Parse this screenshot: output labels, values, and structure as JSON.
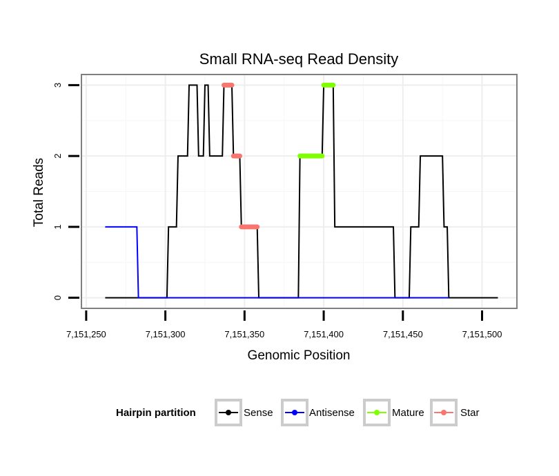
{
  "chart_data": {
    "type": "line",
    "title": "Small RNA-seq Read Density",
    "xlabel": "Genomic Position",
    "ylabel": "Total Reads",
    "xlim": [
      7151247,
      7151522
    ],
    "ylim": [
      -0.15,
      3.15
    ],
    "x_ticks": [
      7151250,
      7151300,
      7151350,
      7151400,
      7151450,
      7151500
    ],
    "x_tick_labels": [
      "7,151,250",
      "7,151,300",
      "7,151,350",
      "7,151,400",
      "7,151,450",
      "7,151,500"
    ],
    "y_ticks": [
      0,
      1,
      2,
      3
    ],
    "y_tick_labels": [
      "0",
      "1",
      "2",
      "3"
    ],
    "grid": true,
    "legend": {
      "title": "Hairpin partition",
      "position": "bottom",
      "entries": [
        {
          "name": "Sense",
          "color": "#000000"
        },
        {
          "name": "Antisense",
          "color": "#0000ff"
        },
        {
          "name": "Mature",
          "color": "#7fff00"
        },
        {
          "name": "Star",
          "color": "#f8766d"
        }
      ]
    },
    "series": [
      {
        "name": "Sense",
        "color": "#000000",
        "x": [
          7151262,
          7151301,
          7151302,
          7151307,
          7151308,
          7151314,
          7151315,
          7151320,
          7151321,
          7151324,
          7151325,
          7151327,
          7151328,
          7151336,
          7151337,
          7151342,
          7151343,
          7151347,
          7151348,
          7151358,
          7151359,
          7151384,
          7151385,
          7151399,
          7151400,
          7151406,
          7151407,
          7151444,
          7151445,
          7151454,
          7151455,
          7151460,
          7151461,
          7151475,
          7151476,
          7151478,
          7151479,
          7151510
        ],
        "y": [
          0,
          0,
          1,
          1,
          2,
          2,
          3,
          3,
          2,
          2,
          3,
          3,
          2,
          2,
          3,
          3,
          2,
          2,
          1,
          1,
          0,
          0,
          2,
          2,
          3,
          3,
          1,
          1,
          0,
          0,
          1,
          1,
          2,
          2,
          1,
          1,
          0,
          0
        ]
      },
      {
        "name": "Antisense",
        "color": "#0000ff",
        "x": [
          7151262,
          7151282,
          7151283,
          7151479
        ],
        "y": [
          1,
          1,
          0,
          0
        ]
      },
      {
        "name": "Mature",
        "color": "#7fff00",
        "segments": [
          {
            "x": [
              7151385,
              7151399
            ],
            "y": [
              2,
              2
            ]
          },
          {
            "x": [
              7151400,
              7151406
            ],
            "y": [
              3,
              3
            ]
          }
        ]
      },
      {
        "name": "Star",
        "color": "#f8766d",
        "segments": [
          {
            "x": [
              7151337,
              7151342
            ],
            "y": [
              3,
              3
            ]
          },
          {
            "x": [
              7151343,
              7151347
            ],
            "y": [
              2,
              2
            ]
          },
          {
            "x": [
              7151348,
              7151358
            ],
            "y": [
              1,
              1
            ]
          }
        ]
      }
    ]
  }
}
